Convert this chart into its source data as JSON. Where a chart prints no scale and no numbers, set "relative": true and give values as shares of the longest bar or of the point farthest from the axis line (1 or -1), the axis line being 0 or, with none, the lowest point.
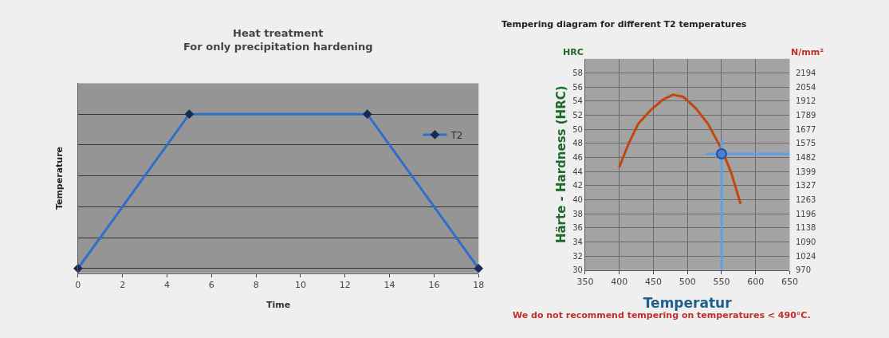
{
  "chart_data": [
    {
      "type": "line",
      "title": "Heat treatment",
      "subtitle": "For only precipitation hardening",
      "xlabel": "Time",
      "ylabel": "Temperature",
      "relative": true,
      "x": [
        0,
        5,
        13,
        18
      ],
      "series": [
        {
          "name": "T2",
          "color": "#2f6fc9",
          "values": [
            0,
            1,
            1,
            0
          ]
        }
      ],
      "xlim": [
        0,
        18
      ],
      "xticks": [
        0,
        2,
        4,
        6,
        8,
        10,
        12,
        14,
        16,
        18
      ],
      "grid": "y",
      "legend": "right",
      "marker": "diamond",
      "tick_labels": "x"
    },
    {
      "type": "line",
      "title": "Tempering diagram for different T2 temperatures",
      "xlabel": "Temperatur",
      "ylabel": "Härte - Hardness (HRC)",
      "series": [
        {
          "color": "#c4460f",
          "x": [
            400,
            414,
            428,
            446,
            464,
            479,
            494,
            512,
            530,
            550,
            564,
            578
          ],
          "values": [
            44.6,
            48.0,
            50.8,
            52.7,
            54.2,
            54.9,
            54.6,
            53.0,
            50.8,
            47.2,
            43.9,
            39.4
          ]
        },
        {
          "color": "#5aa0e8",
          "x": [
            527,
            650
          ],
          "values": [
            46.5,
            46.5
          ]
        },
        {
          "color": "#5aa0e8",
          "x": [
            550,
            550
          ],
          "values": [
            30,
            48.4
          ]
        },
        {
          "type": "scatter",
          "color": "#4a7fd0",
          "x": [
            550
          ],
          "values": [
            46.5
          ]
        }
      ],
      "xlim": [
        350,
        650
      ],
      "xticks": [
        350,
        400,
        450,
        500,
        550,
        600,
        650
      ],
      "ylim": [
        30,
        60
      ],
      "yticks": [
        30,
        32,
        34,
        36,
        38,
        40,
        42,
        44,
        46,
        48,
        50,
        52,
        54,
        56,
        58
      ],
      "grid": true,
      "annotations": [
        "HRC",
        "We do not recommend tempering on temperatures < 490°C.",
        "N/mm²",
        "970",
        "1024",
        "1090",
        "1138",
        "1196",
        "1263",
        "1327",
        "1399",
        "1482",
        "1575",
        "1677",
        "1789",
        "1912",
        "2054",
        "2194"
      ]
    }
  ]
}
